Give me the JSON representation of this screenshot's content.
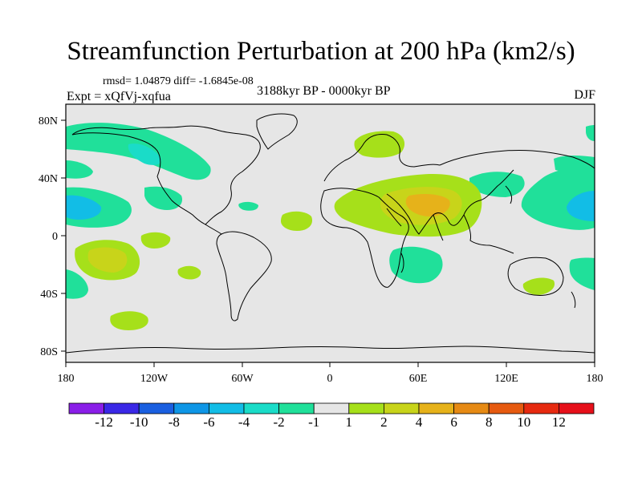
{
  "title": "Streamfunction Perturbation at 200 hPa (km2/s)",
  "stats_line": "rmsd= 1.04879 diff= -1.6845e-08",
  "experiment": "Expt = xQfVj-xqfua",
  "period": "3188kyr BP - 0000kyr BP",
  "season": "DJF",
  "lat_ticks": [
    "80N",
    "40N",
    "0",
    "40S",
    "80S"
  ],
  "lon_ticks": [
    "180",
    "120W",
    "60W",
    "0",
    "60E",
    "120E",
    "180"
  ],
  "colorbar": {
    "labels": [
      "-12",
      "-10",
      "-8",
      "-6",
      "-4",
      "-2",
      "-1",
      "1",
      "2",
      "4",
      "6",
      "8",
      "10",
      "12"
    ],
    "colors": [
      "#8a1ee8",
      "#3a28e6",
      "#1a5fe0",
      "#0e96e6",
      "#12bde6",
      "#1adcc8",
      "#20e09a",
      "#e6e6e6",
      "#a6e01a",
      "#c8d41a",
      "#e6b21a",
      "#e68a14",
      "#e65a10",
      "#e62a10",
      "#e6101a"
    ]
  },
  "colors": {
    "ocean_background": "#e6e6e6",
    "level_neg1": "#20e09a",
    "level_neg2": "#1adcc8",
    "level_neg4": "#12bde6",
    "level_pos1": "#a6e01a",
    "level_pos2": "#c8d41a",
    "level_pos4": "#e6b21a"
  }
}
